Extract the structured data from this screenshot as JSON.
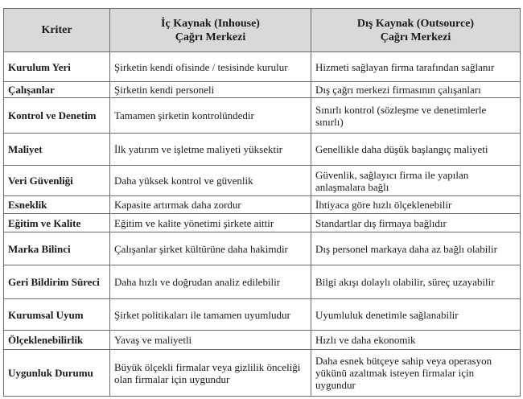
{
  "headers": [
    "Kriter",
    "İç Kaynak (Inhouse)\nÇağrı Merkezi",
    "Dış Kaynak (Outsource)\nÇağrı Merkezi"
  ],
  "rows": [
    [
      "Kurulum Yeri",
      "Şirketin kendi ofisinde / tesisinde kurulur",
      "Hizmeti sağlayan firma tarafından sağlanır"
    ],
    [
      "Çalışanlar",
      "Şirketin kendi personeli",
      "Dış çağrı merkezi firmasının çalışanları"
    ],
    [
      "Kontrol ve Denetim",
      "Tamamen şirketin kontrolündedir",
      "Sınırlı kontrol (sözleşme ve denetimlerle sınırlı)"
    ],
    [
      "Maliyet",
      "İlk yatırım ve işletme maliyeti yüksektir",
      "Genellikle daha düşük başlangıç maliyeti"
    ],
    [
      "Veri Güvenliği",
      "Daha yüksek kontrol ve güvenlik",
      "Güvenlik, sağlayıcı firma ile yapılan anlaşmalara bağlı"
    ],
    [
      "Esneklik",
      "Kapasite artırmak daha zordur",
      "İhtiyaca göre hızlı ölçeklenebilir"
    ],
    [
      "Eğitim ve Kalite",
      "Eğitim ve kalite yönetimi şirkete aittir",
      "Standartlar dış firmaya bağlıdır"
    ],
    [
      "Marka Bilinci",
      "Çalışanlar şirket kültürüne daha hakimdir",
      "Dış personel markaya daha az bağlı olabilir"
    ],
    [
      "Geri Bildirim Süreci",
      "Daha hızlı ve doğrudan analiz edilebilir",
      "Bilgi akışı dolaylı olabilir, süreç uzayabilir"
    ],
    [
      "Kurumsal Uyum",
      "Şirket politikaları ile tamamen uyumludur",
      "Uyumluluk denetimle sağlanabilir"
    ],
    [
      "Ölçeklenebilirlik",
      "Yavaş ve maliyetli",
      "Hızlı ve daha ekonomik"
    ],
    [
      "Uygunluk Durumu",
      "Büyük ölçekli firmalar veya gizlilik önceliği olan firmalar için uygundur",
      "Daha esnek bütçeye sahip veya operasyon yükünü azaltmak isteyen firmalar için uygundur"
    ]
  ]
}
